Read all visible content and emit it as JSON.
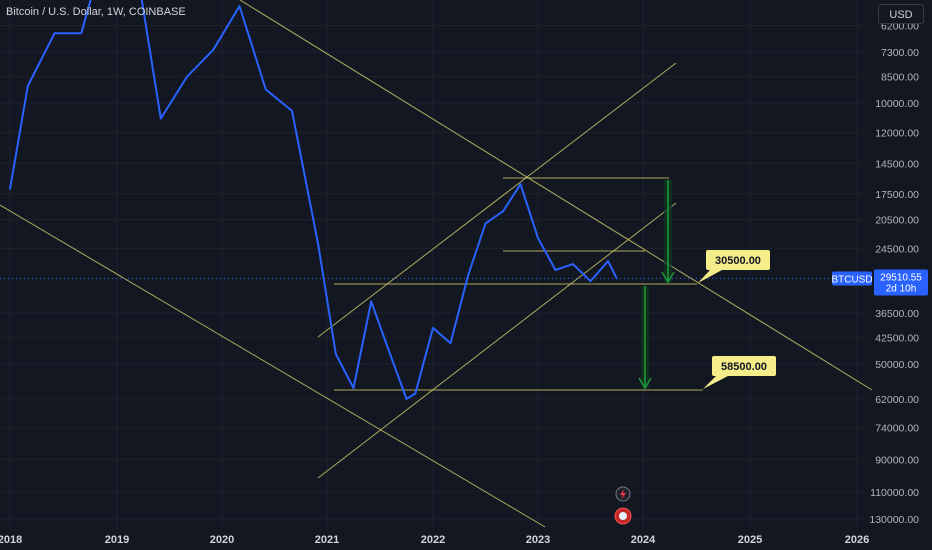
{
  "header": {
    "title": "Bitcoin / U.S. Dollar, 1W, COINBASE",
    "currency": "USD"
  },
  "price_axis": {
    "labels": [
      "6200.00",
      "7300.00",
      "8500.00",
      "10000.00",
      "12000.00",
      "14500.00",
      "17500.00",
      "20500.00",
      "24500.00",
      "29510.55",
      "36500.00",
      "42500.00",
      "50000.00",
      "62000.00",
      "74000.00",
      "90000.00",
      "110000.00",
      "130000.00"
    ],
    "inverted": true,
    "log_scale": true
  },
  "current_price": {
    "symbol": "BTCUSD",
    "value": "29510.55",
    "countdown": "2d 10h"
  },
  "time_axis": {
    "labels": [
      "2018",
      "2019",
      "2020",
      "2021",
      "2022",
      "2023",
      "2024",
      "2025",
      "2026"
    ]
  },
  "annotations": {
    "target1": "30500.00",
    "target2": "58500.00"
  },
  "colors": {
    "background": "#131722",
    "price_line": "#2962ff",
    "trendline": "#d4cf6a",
    "arrow": "#26a69a",
    "callout_bg": "#f5ec8a",
    "price_tag_bg": "#2962ff"
  },
  "chart_data": {
    "type": "line",
    "title": "Bitcoin / U.S. Dollar, 1W, COINBASE",
    "xlabel": "",
    "ylabel": "",
    "y_scale": "log-inverted",
    "ylim": [
      130000,
      6200
    ],
    "series": [
      {
        "name": "BTCUSD",
        "x": [
          "2018-01",
          "2018-03",
          "2018-06",
          "2018-09",
          "2018-12",
          "2019-03",
          "2019-06",
          "2019-09",
          "2019-12",
          "2020-03",
          "2020-06",
          "2020-09",
          "2020-12",
          "2021-02",
          "2021-04",
          "2021-06",
          "2021-08",
          "2021-10",
          "2021-11",
          "2022-01",
          "2022-03",
          "2022-05",
          "2022-07",
          "2022-09",
          "2022-11",
          "2023-01",
          "2023-03",
          "2023-05",
          "2023-07",
          "2023-09",
          "2023-10"
        ],
        "values": [
          17000,
          9000,
          6500,
          6500,
          3600,
          4000,
          11000,
          8500,
          7200,
          5500,
          9200,
          10500,
          24000,
          47000,
          58000,
          34000,
          46000,
          62000,
          60000,
          40000,
          44000,
          29000,
          21000,
          19500,
          16500,
          23000,
          28000,
          27000,
          30000,
          26500,
          29510
        ]
      }
    ]
  }
}
